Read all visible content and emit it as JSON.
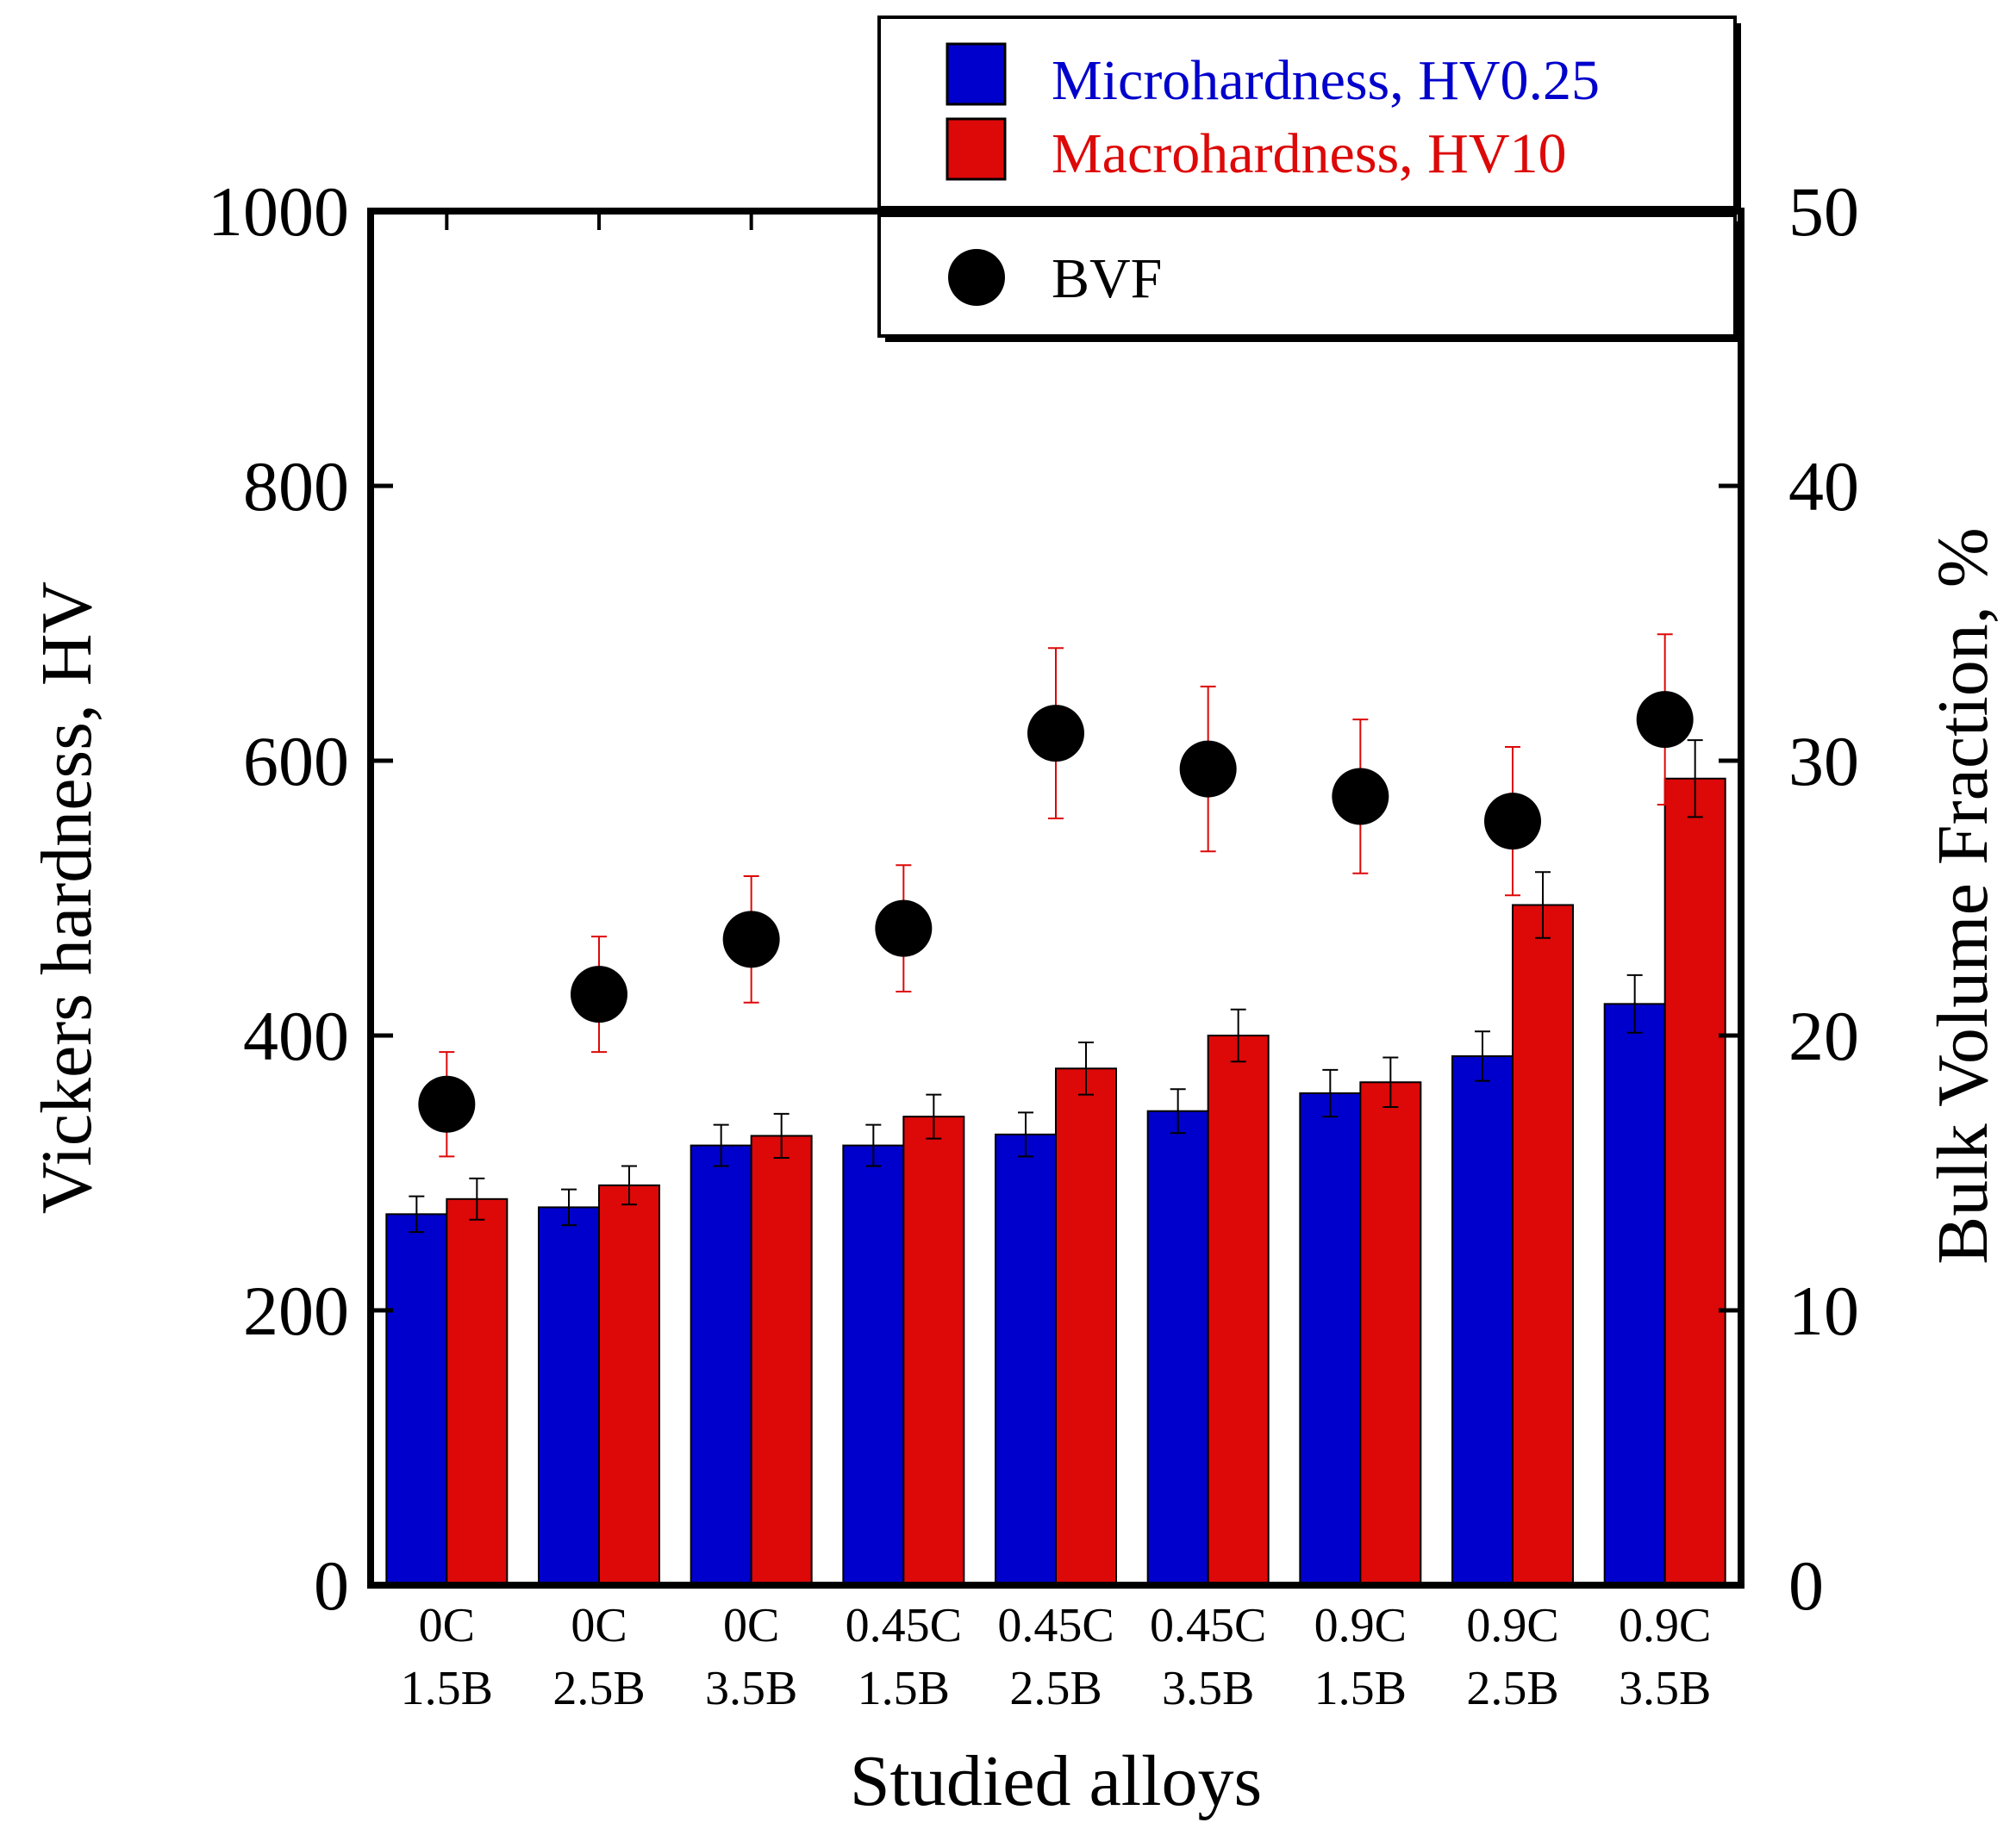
{
  "chart_data": {
    "type": "bar",
    "xlabel": "Studied alloys",
    "ylabel": "Vickers hardness, HV",
    "y2label": "Bulk Volume Fraction, %",
    "ylim": [
      0,
      1000
    ],
    "y2lim": [
      0,
      50
    ],
    "yticks": [
      "0",
      "200",
      "400",
      "600",
      "800",
      "1000"
    ],
    "y2ticks": [
      "0",
      "10",
      "20",
      "30",
      "40",
      "50"
    ],
    "categories": [
      {
        "line1": "0C",
        "line2": "1.5B"
      },
      {
        "line1": "0C",
        "line2": "2.5B"
      },
      {
        "line1": "0C",
        "line2": "3.5B"
      },
      {
        "line1": "0.45C",
        "line2": "1.5B"
      },
      {
        "line1": "0.45C",
        "line2": "2.5B"
      },
      {
        "line1": "0.45C",
        "line2": "3.5B"
      },
      {
        "line1": "0.9C",
        "line2": "1.5B"
      },
      {
        "line1": "0.9C",
        "line2": "2.5B"
      },
      {
        "line1": "0.9C",
        "line2": "3.5B"
      }
    ],
    "series": [
      {
        "name": "Microhardness, HV0.25",
        "color": "#0000cc",
        "values": [
          270,
          275,
          320,
          320,
          328,
          345,
          358,
          385,
          423
        ],
        "errors": [
          13,
          13,
          15,
          15,
          16,
          16,
          17,
          18,
          21
        ]
      },
      {
        "name": "Macrohardness, HV10",
        "color": "#dd0808",
        "values": [
          281,
          291,
          327,
          341,
          376,
          400,
          366,
          495,
          587
        ],
        "errors": [
          15,
          14,
          16,
          16,
          19,
          19,
          18,
          24,
          28
        ]
      },
      {
        "name": "BVF",
        "axis": "right",
        "marker": "circle",
        "color": "#000000",
        "error_color": "#dd0808",
        "values": [
          17.5,
          21.5,
          23.5,
          23.9,
          31.0,
          29.7,
          28.7,
          27.8,
          31.5
        ],
        "errors": [
          1.9,
          2.1,
          2.3,
          2.3,
          3.1,
          3.0,
          2.8,
          2.7,
          3.1
        ]
      }
    ],
    "legend": {
      "position": "top-right",
      "box1": [
        "Microhardness, HV0.25",
        "Macrohardness, HV10"
      ],
      "box2": [
        "BVF"
      ]
    }
  }
}
